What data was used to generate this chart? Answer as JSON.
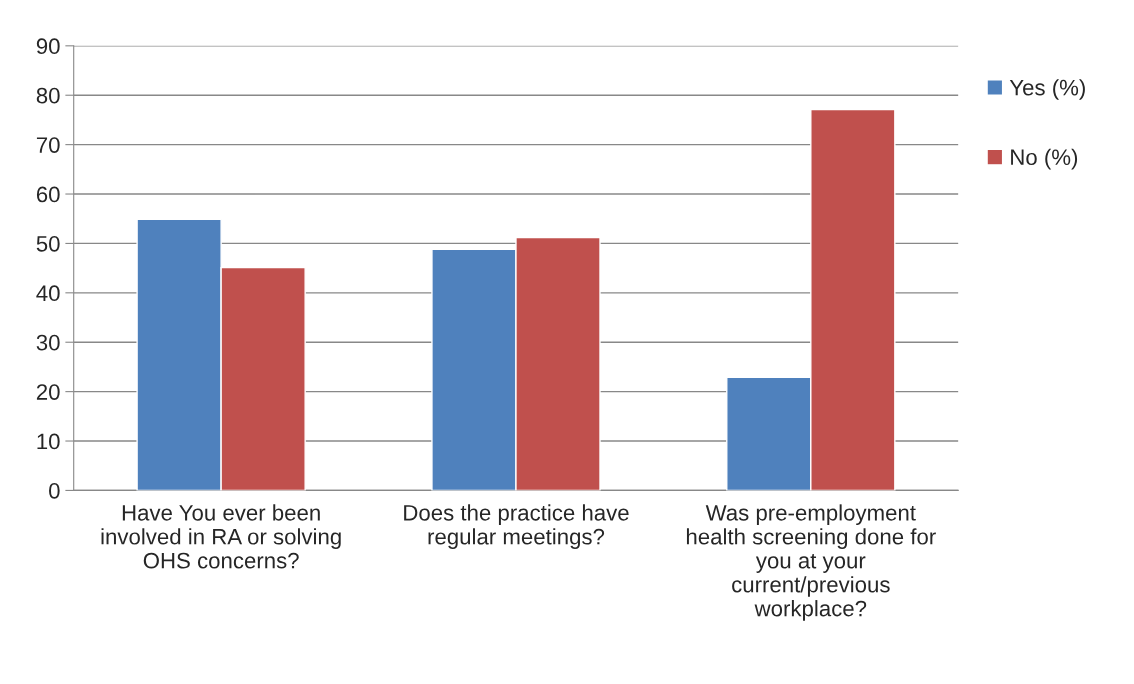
{
  "chart_data": {
    "type": "bar",
    "categories": [
      "Have You ever been\ninvolved in RA or solving\nOHS concerns?",
      "Does the practice have\nregular meetings?",
      "Was pre-employment\nhealth screening done for\nyou at your\ncurrent/previous\nworkplace?"
    ],
    "series": [
      {
        "name": "Yes (%)",
        "color": "#4f81bd",
        "values": [
          54.9,
          48.8,
          22.9
        ]
      },
      {
        "name": "No (%)",
        "color": "#c0504d",
        "values": [
          45.1,
          51.2,
          77.1
        ]
      }
    ],
    "ylim": [
      0,
      90
    ],
    "yticks": [
      0,
      10,
      20,
      30,
      40,
      50,
      60,
      70,
      80,
      90
    ],
    "grid": "y",
    "legend": "right"
  }
}
